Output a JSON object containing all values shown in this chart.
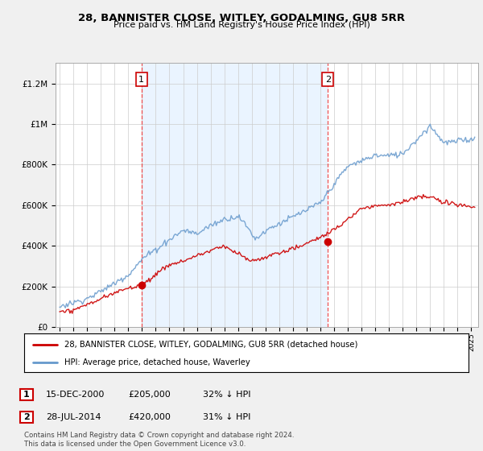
{
  "title": "28, BANNISTER CLOSE, WITLEY, GODALMING, GU8 5RR",
  "subtitle": "Price paid vs. HM Land Registry's House Price Index (HPI)",
  "legend_label_red": "28, BANNISTER CLOSE, WITLEY, GODALMING, GU8 5RR (detached house)",
  "legend_label_blue": "HPI: Average price, detached house, Waverley",
  "transaction1_date": "15-DEC-2000",
  "transaction1_price": "£205,000",
  "transaction1_hpi": "32% ↓ HPI",
  "transaction2_date": "28-JUL-2014",
  "transaction2_price": "£420,000",
  "transaction2_hpi": "31% ↓ HPI",
  "footnote": "Contains HM Land Registry data © Crown copyright and database right 2024.\nThis data is licensed under the Open Government Licence v3.0.",
  "ylim_max": 1300000,
  "background_color": "#f0f0f0",
  "plot_bg_color": "#ffffff",
  "shade_color": "#ddeeff",
  "red_color": "#cc0000",
  "blue_color": "#6699cc",
  "dashed_color": "#ee3333",
  "t1_year": 2000.958,
  "t2_year": 2014.542,
  "t1_price": 205000,
  "t2_price": 420000,
  "year_start": 1995,
  "year_end": 2025
}
